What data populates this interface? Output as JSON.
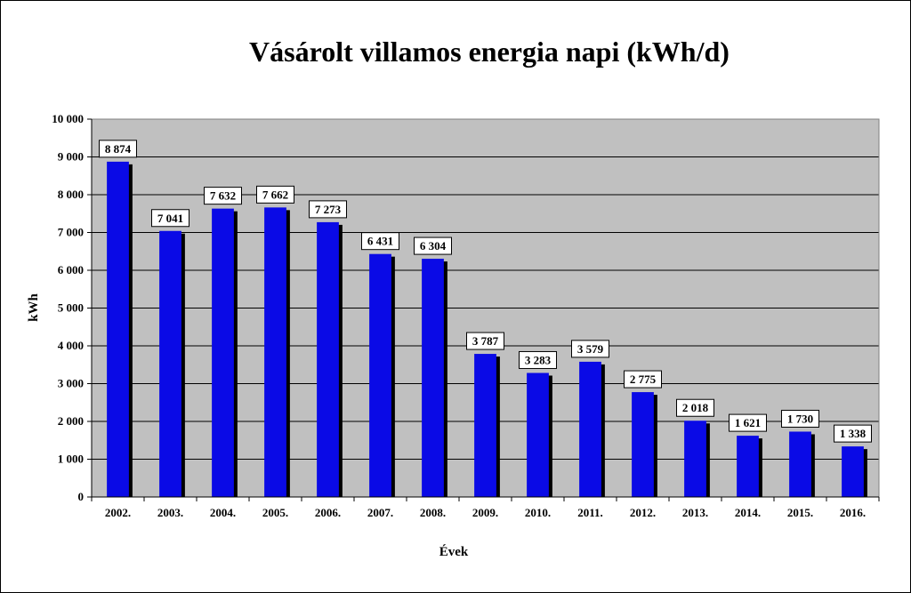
{
  "chart_data": {
    "type": "bar",
    "title": "Vásárolt villamos energia napi (kWh/d)",
    "xlabel": "Évek",
    "ylabel": "kWh",
    "categories": [
      "2002.",
      "2003.",
      "2004.",
      "2005.",
      "2006.",
      "2007.",
      "2008.",
      "2009.",
      "2010.",
      "2011.",
      "2012.",
      "2013.",
      "2014.",
      "2015.",
      "2016."
    ],
    "values": [
      8874,
      7041,
      7632,
      7662,
      7273,
      6431,
      6304,
      3787,
      3283,
      3579,
      2775,
      2018,
      1621,
      1730,
      1338
    ],
    "value_labels": [
      "8 874",
      "7 041",
      "7 632",
      "7 662",
      "7 273",
      "6 431",
      "6 304",
      "3 787",
      "3 283",
      "3 579",
      "2 775",
      "2 018",
      "1 621",
      "1 730",
      "1 338"
    ],
    "ylim": [
      0,
      10000
    ],
    "yticks": [
      0,
      1000,
      2000,
      3000,
      4000,
      5000,
      6000,
      7000,
      8000,
      9000,
      10000
    ],
    "ytick_labels": [
      "0",
      "1 000",
      "2 000",
      "3 000",
      "4 000",
      "5 000",
      "6 000",
      "7 000",
      "8 000",
      "9 000",
      "10 000"
    ],
    "grid": true,
    "legend": false,
    "colors": {
      "bar": "#0a0ae6",
      "bar_shadow": "#000000",
      "plot_background": "#c0c0c0"
    }
  }
}
